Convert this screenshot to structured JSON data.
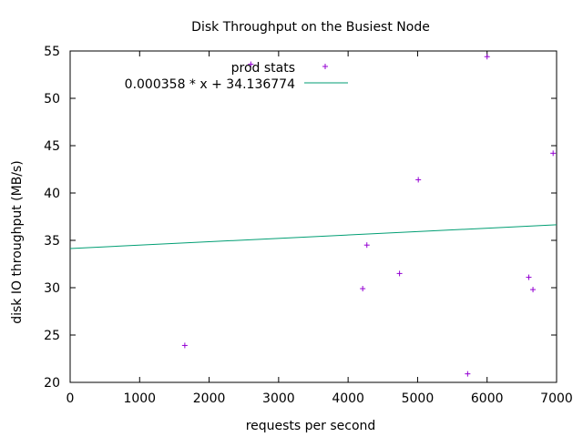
{
  "chart_data": {
    "type": "scatter",
    "title": "Disk Throughput on the Busiest Node",
    "xlabel": "requests per second",
    "ylabel": "disk IO throughput (MB/s)",
    "xlim": [
      0,
      7000
    ],
    "ylim": [
      20,
      55
    ],
    "xticks": [
      0,
      1000,
      2000,
      3000,
      4000,
      5000,
      6000,
      7000
    ],
    "yticks": [
      20,
      25,
      30,
      35,
      40,
      45,
      50,
      55
    ],
    "grid": false,
    "legend_position": "top-right",
    "series": [
      {
        "name": "prod stats",
        "kind": "points",
        "marker": "+",
        "color": "#9400d3",
        "points": [
          {
            "x": 1650,
            "y": 23.9
          },
          {
            "x": 2600,
            "y": 53.6
          },
          {
            "x": 4210,
            "y": 29.9
          },
          {
            "x": 4270,
            "y": 34.5
          },
          {
            "x": 4740,
            "y": 31.5
          },
          {
            "x": 5010,
            "y": 41.4
          },
          {
            "x": 5720,
            "y": 20.9
          },
          {
            "x": 6000,
            "y": 54.4
          },
          {
            "x": 6600,
            "y": 31.1
          },
          {
            "x": 6660,
            "y": 29.8
          },
          {
            "x": 6950,
            "y": 44.2
          }
        ]
      },
      {
        "name": "0.000358 * x + 34.136774",
        "kind": "line",
        "color": "#009e73",
        "slope": 0.000358,
        "intercept": 34.136774
      }
    ]
  }
}
